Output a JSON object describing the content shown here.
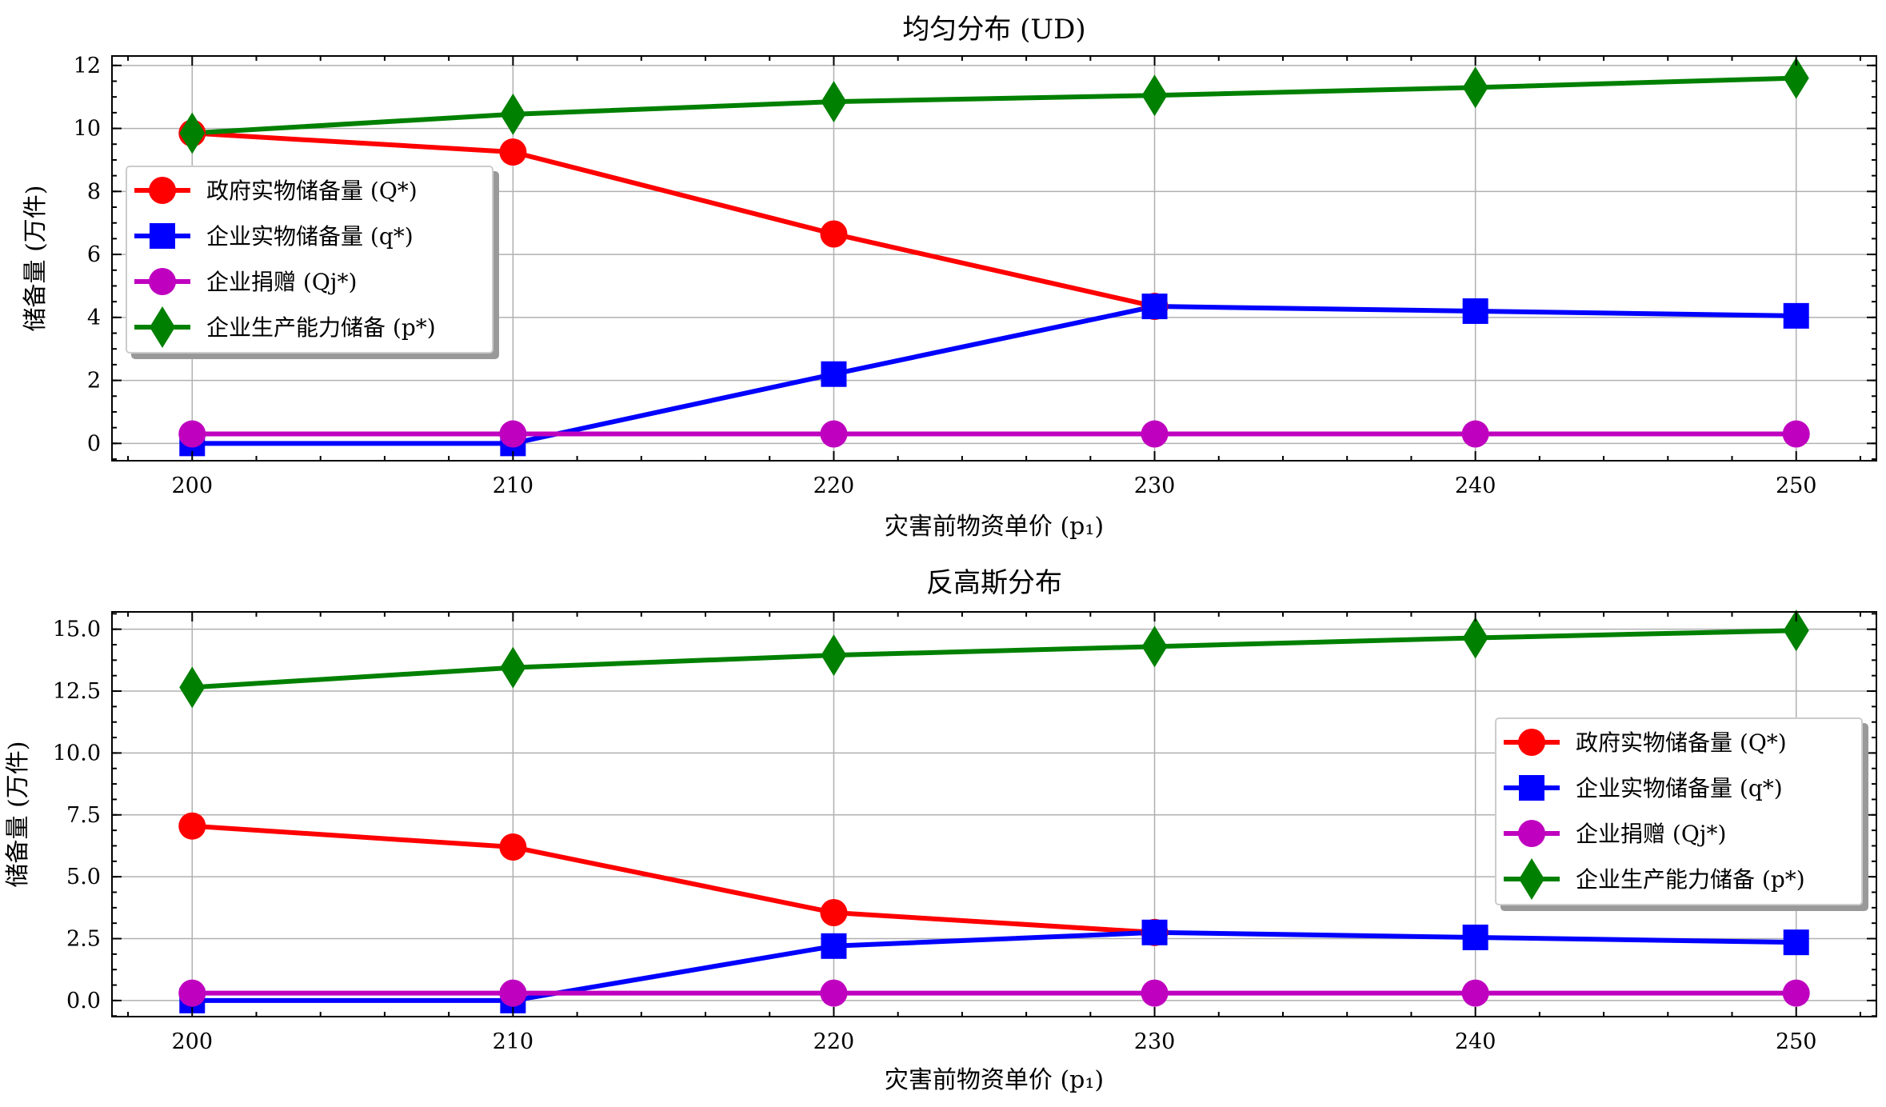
{
  "chart_data": [
    {
      "type": "line",
      "title": "均匀分布 (UD)",
      "xlabel": "灾害前物资单价 (p₁)",
      "ylabel": "储备量 (万件)",
      "x": [
        200,
        210,
        220,
        230,
        240,
        250
      ],
      "xlim": [
        197.5,
        252.5
      ],
      "ylim": [
        -0.55,
        12.3
      ],
      "xticks": [
        200,
        210,
        220,
        230,
        240,
        250
      ],
      "yticks": [
        0,
        2,
        4,
        6,
        8,
        10,
        12
      ],
      "ytick_labels": [
        "0",
        "2",
        "4",
        "6",
        "8",
        "10",
        "12"
      ],
      "grid": true,
      "legend_position": "center-left",
      "series": [
        {
          "name": "政府实物储备量 (Q*)",
          "color": "#ff0000",
          "marker": "circle",
          "values": [
            9.85,
            9.25,
            6.65,
            4.35,
            null,
            null
          ]
        },
        {
          "name": "企业实物储备量 (q*)",
          "color": "#0000ff",
          "marker": "square",
          "values": [
            0.0,
            0.0,
            2.2,
            4.35,
            4.2,
            4.05
          ]
        },
        {
          "name": "企业捐赠 (Qj*)",
          "color": "#bf00bf",
          "marker": "circle",
          "values": [
            0.3,
            0.3,
            0.3,
            0.3,
            0.3,
            0.3
          ]
        },
        {
          "name": "企业生产能力储备 (p*)",
          "color": "#008000",
          "marker": "diamond",
          "values": [
            9.85,
            10.45,
            10.85,
            11.05,
            11.3,
            11.6
          ]
        }
      ]
    },
    {
      "type": "line",
      "title": "反高斯分布",
      "xlabel": "灾害前物资单价 (p₁)",
      "ylabel": "储备量 (万件)",
      "x": [
        200,
        210,
        220,
        230,
        240,
        250
      ],
      "xlim": [
        197.5,
        252.5
      ],
      "ylim": [
        -0.65,
        15.7
      ],
      "xticks": [
        200,
        210,
        220,
        230,
        240,
        250
      ],
      "yticks": [
        0,
        2.5,
        5,
        7.5,
        10,
        12.5,
        15
      ],
      "ytick_labels": [
        "0.0",
        "2.5",
        "5.0",
        "7.5",
        "10.0",
        "12.5",
        "15.0"
      ],
      "grid": true,
      "legend_position": "center-right",
      "series": [
        {
          "name": "政府实物储备量 (Q*)",
          "color": "#ff0000",
          "marker": "circle",
          "values": [
            7.05,
            6.2,
            3.55,
            2.75,
            null,
            null
          ]
        },
        {
          "name": "企业实物储备量 (q*)",
          "color": "#0000ff",
          "marker": "square",
          "values": [
            0.0,
            0.0,
            2.2,
            2.75,
            2.55,
            2.35
          ]
        },
        {
          "name": "企业捐赠 (Qj*)",
          "color": "#bf00bf",
          "marker": "circle",
          "values": [
            0.3,
            0.3,
            0.3,
            0.3,
            0.3,
            0.3
          ]
        },
        {
          "name": "企业生产能力储备 (p*)",
          "color": "#008000",
          "marker": "diamond",
          "values": [
            12.65,
            13.45,
            13.95,
            14.3,
            14.65,
            14.95
          ]
        }
      ]
    }
  ]
}
